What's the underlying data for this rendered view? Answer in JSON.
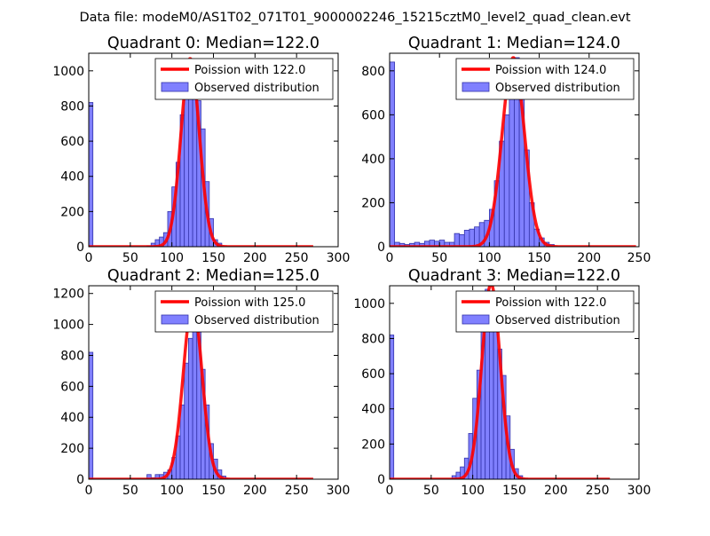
{
  "figure_title": "Data file: modeM0/AS1T02_071T01_9000002246_15215cztM0_level2_quad_clean.evt",
  "colors": {
    "bar_fill": "#8080ff",
    "bar_edge": "#3333aa",
    "poisson_line": "#ff0000"
  },
  "chart_data": [
    {
      "type": "bar",
      "title": "Quadrant 0: Median=122.0",
      "legend": [
        "Poission with 122.0",
        "Observed distribution"
      ],
      "legend_position": "top-right",
      "xlim": [
        0,
        300
      ],
      "ylim": [
        0,
        1100
      ],
      "xticks": [
        "0",
        "50",
        "100",
        "150",
        "200",
        "250",
        "300"
      ],
      "yticks": [
        "0",
        "200",
        "400",
        "600",
        "800",
        "1000"
      ],
      "xtick_values": [
        0,
        50,
        100,
        150,
        200,
        250,
        300
      ],
      "ytick_values": [
        0,
        200,
        400,
        600,
        800,
        1000
      ],
      "bin_width": 5,
      "bins": [
        [
          0,
          820
        ],
        [
          70,
          5
        ],
        [
          75,
          20
        ],
        [
          80,
          40
        ],
        [
          85,
          55
        ],
        [
          90,
          80
        ],
        [
          95,
          200
        ],
        [
          100,
          340
        ],
        [
          105,
          480
        ],
        [
          110,
          750
        ],
        [
          115,
          860
        ],
        [
          120,
          1020
        ],
        [
          125,
          1050
        ],
        [
          130,
          830
        ],
        [
          135,
          670
        ],
        [
          140,
          370
        ],
        [
          145,
          160
        ],
        [
          150,
          40
        ],
        [
          155,
          20
        ]
      ],
      "poisson": {
        "mean": 122.0,
        "peak": 1070,
        "sigma": 11.0,
        "range": [
          0,
          270
        ]
      }
    },
    {
      "type": "bar",
      "title": "Quadrant 1: Median=124.0",
      "legend": [
        "Poission with 124.0",
        "Observed distribution"
      ],
      "legend_position": "top-right",
      "xlim": [
        0,
        250
      ],
      "ylim": [
        0,
        880
      ],
      "xticks": [
        "0",
        "50",
        "100",
        "150",
        "200",
        "250"
      ],
      "yticks": [
        "0",
        "200",
        "400",
        "600",
        "800"
      ],
      "xtick_values": [
        0,
        50,
        100,
        150,
        200,
        250
      ],
      "ytick_values": [
        0,
        200,
        400,
        600,
        800
      ],
      "bin_width": 5,
      "bins": [
        [
          0,
          840
        ],
        [
          5,
          20
        ],
        [
          10,
          15
        ],
        [
          15,
          10
        ],
        [
          20,
          15
        ],
        [
          25,
          20
        ],
        [
          30,
          15
        ],
        [
          35,
          25
        ],
        [
          40,
          30
        ],
        [
          45,
          25
        ],
        [
          50,
          30
        ],
        [
          55,
          20
        ],
        [
          60,
          20
        ],
        [
          65,
          60
        ],
        [
          70,
          55
        ],
        [
          75,
          75
        ],
        [
          80,
          80
        ],
        [
          85,
          90
        ],
        [
          90,
          110
        ],
        [
          95,
          120
        ],
        [
          100,
          170
        ],
        [
          105,
          300
        ],
        [
          110,
          480
        ],
        [
          115,
          600
        ],
        [
          120,
          700
        ],
        [
          125,
          860
        ],
        [
          130,
          830
        ],
        [
          135,
          440
        ],
        [
          140,
          200
        ],
        [
          145,
          80
        ],
        [
          150,
          40
        ],
        [
          155,
          20
        ],
        [
          160,
          10
        ]
      ],
      "poisson": {
        "mean": 124.0,
        "peak": 860,
        "sigma": 11.1,
        "range": [
          0,
          247
        ]
      }
    },
    {
      "type": "bar",
      "title": "Quadrant 2: Median=125.0",
      "legend": [
        "Poission with 125.0",
        "Observed distribution"
      ],
      "legend_position": "top-right",
      "xlim": [
        0,
        300
      ],
      "ylim": [
        0,
        1250
      ],
      "xticks": [
        "0",
        "50",
        "100",
        "150",
        "200",
        "250",
        "300"
      ],
      "yticks": [
        "0",
        "200",
        "400",
        "600",
        "800",
        "1000",
        "1200"
      ],
      "xtick_values": [
        0,
        50,
        100,
        150,
        200,
        250,
        300
      ],
      "ytick_values": [
        0,
        200,
        400,
        600,
        800,
        1000,
        1200
      ],
      "bin_width": 5,
      "bins": [
        [
          0,
          820
        ],
        [
          70,
          30
        ],
        [
          75,
          10
        ],
        [
          80,
          30
        ],
        [
          85,
          30
        ],
        [
          90,
          45
        ],
        [
          95,
          60
        ],
        [
          100,
          140
        ],
        [
          105,
          280
        ],
        [
          110,
          480
        ],
        [
          115,
          750
        ],
        [
          120,
          910
        ],
        [
          125,
          1080
        ],
        [
          130,
          1010
        ],
        [
          135,
          710
        ],
        [
          140,
          480
        ],
        [
          145,
          230
        ],
        [
          150,
          130
        ],
        [
          155,
          60
        ],
        [
          160,
          20
        ]
      ],
      "poisson": {
        "mean": 125.0,
        "peak": 1140,
        "sigma": 11.2,
        "range": [
          0,
          270
        ]
      }
    },
    {
      "type": "bar",
      "title": "Quadrant 3: Median=122.0",
      "legend": [
        "Poission with 122.0",
        "Observed distribution"
      ],
      "legend_position": "top-right",
      "xlim": [
        0,
        300
      ],
      "ylim": [
        0,
        1100
      ],
      "xticks": [
        "0",
        "50",
        "100",
        "150",
        "200",
        "250",
        "300"
      ],
      "yticks": [
        "0",
        "200",
        "400",
        "600",
        "800",
        "1000"
      ],
      "xtick_values": [
        0,
        50,
        100,
        150,
        200,
        250,
        300
      ],
      "ytick_values": [
        0,
        200,
        400,
        600,
        800,
        1000
      ],
      "bin_width": 5,
      "bins": [
        [
          0,
          820
        ],
        [
          75,
          20
        ],
        [
          80,
          40
        ],
        [
          85,
          70
        ],
        [
          90,
          120
        ],
        [
          95,
          260
        ],
        [
          100,
          460
        ],
        [
          105,
          620
        ],
        [
          110,
          950
        ],
        [
          115,
          1080
        ],
        [
          120,
          1070
        ],
        [
          125,
          900
        ],
        [
          130,
          740
        ],
        [
          135,
          590
        ],
        [
          140,
          360
        ],
        [
          145,
          170
        ],
        [
          150,
          60
        ],
        [
          155,
          20
        ]
      ],
      "poisson": {
        "mean": 122.0,
        "peak": 1110,
        "sigma": 11.0,
        "range": [
          0,
          265
        ]
      }
    }
  ]
}
